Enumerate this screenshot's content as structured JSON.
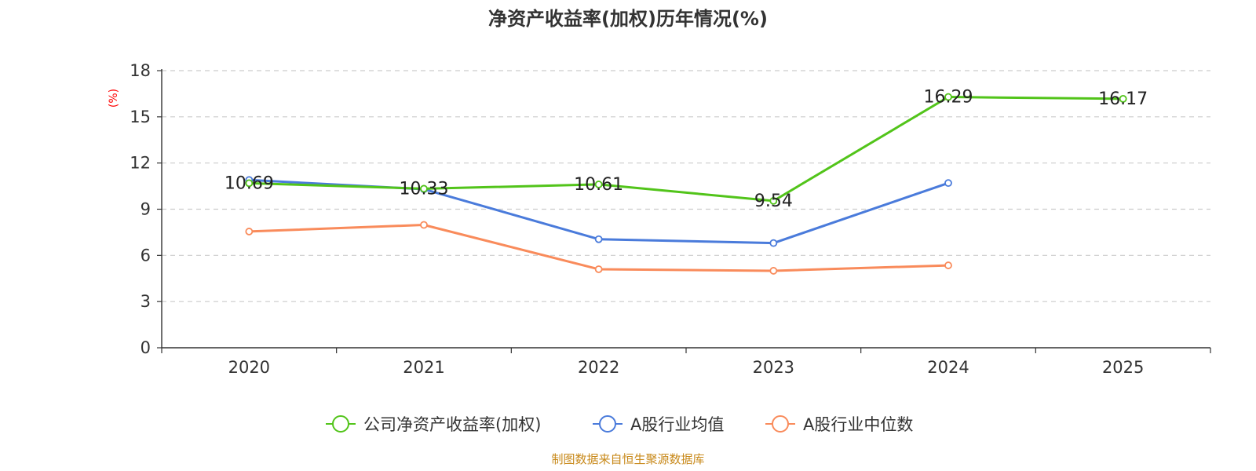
{
  "chart_data": {
    "type": "line",
    "title": "净资产收益率(加权)历年情况(%)",
    "ylabel": "(%)",
    "categories": [
      "2020",
      "2021",
      "2022",
      "2023",
      "2024",
      "2025"
    ],
    "ylim": [
      0,
      18
    ],
    "yticks": [
      0,
      3,
      6,
      9,
      12,
      15,
      18
    ],
    "grid": true,
    "legend_position": "bottom",
    "series": [
      {
        "name": "公司净资产收益率(加权)",
        "color": "#52c41a",
        "values": [
          10.69,
          10.33,
          10.61,
          9.54,
          16.29,
          16.17
        ],
        "labels": [
          "10.69",
          "10.33",
          "10.61",
          "9.54",
          "16.29",
          "16.17"
        ]
      },
      {
        "name": "A股行业均值",
        "color": "#4a7bdb",
        "values": [
          10.9,
          10.3,
          7.05,
          6.8,
          10.7,
          null
        ]
      },
      {
        "name": "A股行业中位数",
        "color": "#f98b5b",
        "values": [
          7.55,
          7.98,
          5.1,
          5.0,
          5.35,
          null
        ]
      }
    ],
    "source": "制图数据来自恒生聚源数据库"
  }
}
